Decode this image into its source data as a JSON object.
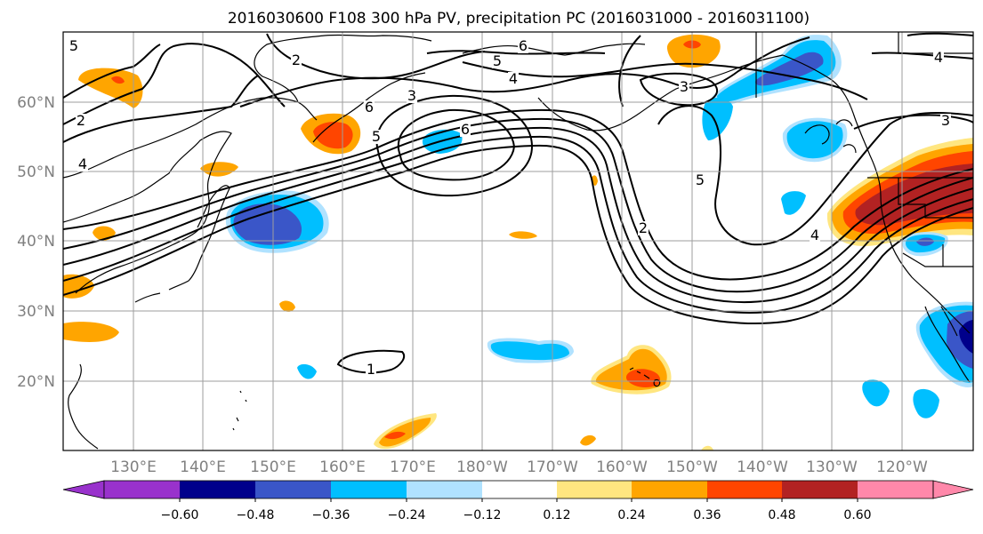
{
  "figure": {
    "title": "2016030600 F108 300 hPa PV, precipitation PC (2016031000 - 2016031100)"
  },
  "map": {
    "latitude_labels": [
      "60°N",
      "50°N",
      "40°N",
      "30°N",
      "20°N"
    ],
    "longitude_labels": [
      "130°E",
      "140°E",
      "150°E",
      "160°E",
      "170°E",
      "180°W",
      "170°W",
      "160°W",
      "150°W",
      "140°W",
      "130°W",
      "120°W"
    ],
    "pv_contour_labels": [
      "5",
      "2",
      "6",
      "5",
      "4",
      "3",
      "6",
      "5",
      "2",
      "4",
      "3",
      "4",
      "3",
      "4",
      "5",
      "2",
      "1",
      "6"
    ]
  },
  "colorbar": {
    "tick_labels": [
      "−0.60",
      "−0.48",
      "−0.36",
      "−0.24",
      "−0.12",
      "0.12",
      "0.24",
      "0.36",
      "0.48",
      "0.60"
    ],
    "colors": [
      "#9932CC",
      "#00008B",
      "#3A56C8",
      "#00BFFF",
      "#B0E2FF",
      "#FFFFFF",
      "#FFE680",
      "#FFA500",
      "#FF4500",
      "#B22222",
      "#FF88AA"
    ]
  }
}
